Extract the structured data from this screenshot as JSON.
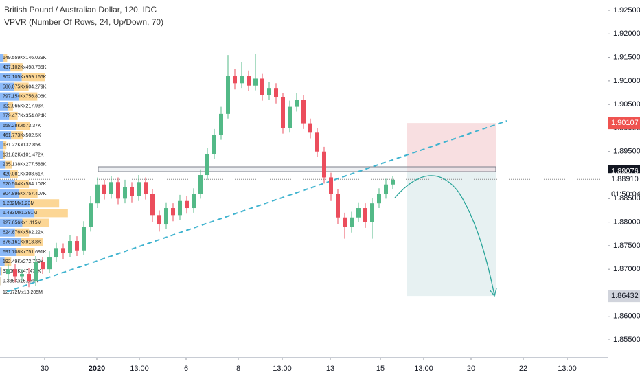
{
  "chart_data": {
    "type": "candlestick",
    "title": "British Pound / Australian Dollar, 120, IDC",
    "subtitle": "VPVR (Number Of Rows, 24, Up/Down, 70)",
    "up_color": "#53b987",
    "down_color": "#eb4d5c",
    "xlim": [
      -1.2,
      87.3
    ],
    "xticks": [
      {
        "value": 5.3,
        "label": "30"
      },
      {
        "value": 12.9,
        "label": "2020"
      },
      {
        "value": 19.1,
        "label": "13:00"
      },
      {
        "value": 25.9,
        "label": "6"
      },
      {
        "value": 33.5,
        "label": "8"
      },
      {
        "value": 39.9,
        "label": "13:00"
      },
      {
        "value": 46.9,
        "label": "13"
      },
      {
        "value": 54.2,
        "label": "15"
      },
      {
        "value": 60.5,
        "label": "13:00"
      },
      {
        "value": 67.4,
        "label": "20"
      },
      {
        "value": 75,
        "label": "22"
      },
      {
        "value": 81.4,
        "label": "13:00"
      }
    ],
    "ylim": [
      1.85136,
      1.92719
    ],
    "yticks": [
      {
        "value": 1.855,
        "label": "1.85500"
      },
      {
        "value": 1.86,
        "label": "1.86000"
      },
      {
        "value": 1.865,
        "label": "1.86500"
      },
      {
        "value": 1.87,
        "label": "1.87000"
      },
      {
        "value": 1.875,
        "label": "1.87500"
      },
      {
        "value": 1.88,
        "label": "1.88000"
      },
      {
        "value": 1.885,
        "label": "1.88500"
      },
      {
        "value": 1.89,
        "label": "1.89000"
      },
      {
        "value": 1.895,
        "label": "1.89500"
      },
      {
        "value": 1.9,
        "label": "1.90000"
      },
      {
        "value": 1.905,
        "label": "1.90500"
      },
      {
        "value": 1.91,
        "label": "1.91000"
      },
      {
        "value": 1.915,
        "label": "1.91500"
      },
      {
        "value": 1.92,
        "label": "1.92000"
      },
      {
        "value": 1.925,
        "label": "1.92500"
      }
    ],
    "open": [
      1.869,
      1.87,
      1.8685,
      1.869,
      1.8675,
      1.8715,
      1.87,
      1.8725,
      1.8745,
      1.8735,
      1.876,
      1.874,
      1.879,
      1.884,
      1.888,
      1.886,
      1.8885,
      1.885,
      1.8875,
      1.8855,
      1.8885,
      1.886,
      1.8815,
      1.8795,
      1.883,
      1.8815,
      1.8845,
      1.883,
      1.886,
      1.89,
      1.8945,
      1.8985,
      1.903,
      1.911,
      1.9095,
      1.911,
      1.909,
      1.9105,
      1.907,
      1.9085,
      1.9065,
      1.9,
      1.9045,
      1.906,
      1.901,
      1.899,
      1.895,
      1.8895,
      1.886,
      1.881,
      1.879,
      1.881,
      1.883,
      1.88,
      1.884,
      1.886,
      1.888
    ],
    "high": [
      1.871,
      1.8712,
      1.87,
      1.8702,
      1.8728,
      1.8725,
      1.8738,
      1.8756,
      1.8755,
      1.8772,
      1.877,
      1.8802,
      1.8855,
      1.8895,
      1.889,
      1.8898,
      1.8895,
      1.889,
      1.8885,
      1.89,
      1.8895,
      1.887,
      1.8825,
      1.8842,
      1.884,
      1.8858,
      1.8855,
      1.8872,
      1.8912,
      1.8958,
      1.8998,
      1.9045,
      1.9155,
      1.9125,
      1.914,
      1.9122,
      1.9158,
      1.9115,
      1.9098,
      1.9095,
      1.9075,
      1.9058,
      1.9075,
      1.907,
      1.902,
      1.9,
      1.896,
      1.8905,
      1.887,
      1.882,
      1.8822,
      1.8842,
      1.884,
      1.8852,
      1.8872,
      1.8892,
      1.8898
    ],
    "low": [
      1.8678,
      1.8672,
      1.8675,
      1.8662,
      1.8665,
      1.869,
      1.8692,
      1.8715,
      1.8722,
      1.8725,
      1.8728,
      1.873,
      1.878,
      1.883,
      1.8848,
      1.885,
      1.8838,
      1.884,
      1.8842,
      1.8845,
      1.8848,
      1.88,
      1.878,
      1.8785,
      1.8802,
      1.8805,
      1.8818,
      1.882,
      1.885,
      1.889,
      1.8935,
      1.8975,
      1.902,
      1.9082,
      1.9085,
      1.9078,
      1.908,
      1.9058,
      1.906,
      1.9052,
      1.8988,
      1.899,
      1.9035,
      1.8998,
      1.8978,
      1.8938,
      1.8882,
      1.8845,
      1.8795,
      1.8765,
      1.8778,
      1.88,
      1.8788,
      1.8765,
      1.883,
      1.885,
      1.887
    ],
    "close": [
      1.87,
      1.8685,
      1.869,
      1.8675,
      1.8715,
      1.87,
      1.8725,
      1.8745,
      1.8735,
      1.876,
      1.874,
      1.879,
      1.884,
      1.888,
      1.886,
      1.8885,
      1.885,
      1.8875,
      1.8855,
      1.8885,
      1.886,
      1.8815,
      1.8795,
      1.883,
      1.8815,
      1.8845,
      1.883,
      1.886,
      1.89,
      1.8945,
      1.8985,
      1.903,
      1.911,
      1.9095,
      1.911,
      1.909,
      1.9105,
      1.907,
      1.9085,
      1.9065,
      1.9,
      1.9045,
      1.906,
      1.901,
      1.899,
      1.895,
      1.8895,
      1.886,
      1.881,
      1.879,
      1.881,
      1.883,
      1.88,
      1.884,
      1.886,
      1.888,
      1.889
    ],
    "volume_profile": {
      "up_color": "#5b9cf6",
      "down_color": "#fbc468",
      "up": [
        149.559,
        437.102,
        902.105,
        586.075,
        797.154,
        322.965,
        379.477,
        658.28,
        461.773,
        131.22,
        131.82,
        235.138,
        429.081,
        620.504,
        804.896,
        1232,
        1433,
        927.656,
        624.876,
        876.161,
        691.708,
        192.49,
        33.068,
        9.335
      ],
      "down": [
        146.029,
        498.785,
        959.166,
        604.279,
        756.806,
        217.93,
        354.024,
        573.37,
        502.5,
        132.85,
        101.472,
        277.588,
        308.61,
        584.107,
        757.407,
        1230,
        1391,
        1115,
        582.22,
        913.8,
        751.691,
        272.769,
        47.476,
        15.579
      ],
      "value_labels": [
        "149.559Kx146.029K",
        "437.102Kx498.785K",
        "902.105Kx959.166K",
        "586.075Kx604.279K",
        "797.154Kx756.806K",
        "322.965Kx217.93K",
        "379.477Kx354.024K",
        "658.28Kx573.37K",
        "461.773Kx502.5K",
        "131.22Kx132.85K",
        "131.82Kx101.472K",
        "235.138Kx277.588K",
        "429.081Kx308.61K",
        "620.504Kx584.107K",
        "804.896Kx757.407K",
        "1.232Mx1.23M",
        "1.433Mx1.391M",
        "927.656Kx1.115M",
        "624.876Kx582.22K",
        "876.161Kx913.8K",
        "691.708Kx751.691K",
        "192.49Kx272.769K",
        "33.068Kx47.476K",
        "9.335Kx15.579K"
      ],
      "note": "12.972Mx13.205M"
    },
    "position": {
      "stop": 1.90107,
      "entry": 1.89076,
      "target": 1.86432
    },
    "last_price": {
      "value": 1.8891,
      "label": "1.88910"
    },
    "countdown": "01:50:04"
  }
}
